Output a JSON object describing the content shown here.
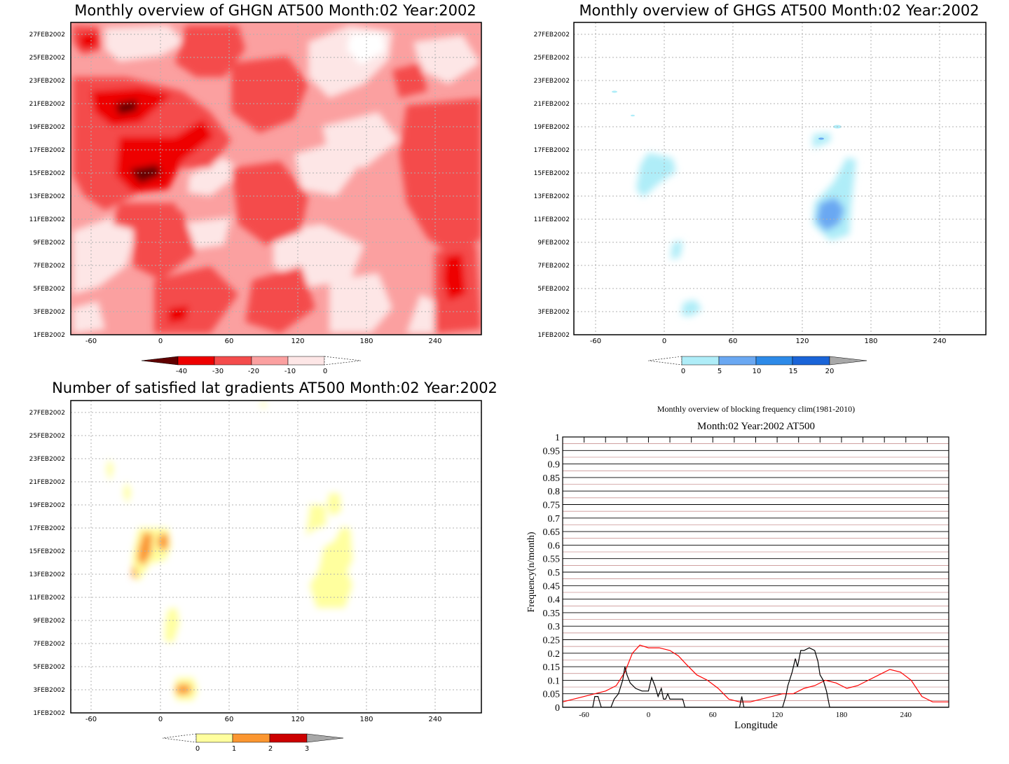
{
  "colors": {
    "red_le_m40": "#600000",
    "red_m40_m30": "#ee0000",
    "red_m30_m20": "#f44c4c",
    "red_m20_m10": "#fba0a0",
    "red_m10_0": "#fde6e6",
    "blue_0_5": "#afedf8",
    "blue_5_10": "#6aa8f2",
    "blue_10_15": "#2d8ae8",
    "blue_15_20": "#1a64d8",
    "yellow_0_1": "#ffff9e",
    "orange_1_2": "#fb9630",
    "red_2_3": "#cc0000",
    "grey_over": "#a8a8a8",
    "clim_line": "#ff0000",
    "obs_line": "#000000",
    "band_red_line": "#c08080"
  },
  "chart_data": [
    {
      "type": "heatmap",
      "title": "Monthly overview of GHGN AT500 Month:02 Year:2002",
      "x_ticks": [
        "-60",
        "0",
        "60",
        "120",
        "180",
        "240"
      ],
      "y_ticks": [
        "1FEB2002",
        "3FEB2002",
        "5FEB2002",
        "7FEB2002",
        "9FEB2002",
        "11FEB2002",
        "13FEB2002",
        "15FEB2002",
        "17FEB2002",
        "19FEB2002",
        "21FEB2002",
        "23FEB2002",
        "25FEB2002",
        "27FEB2002"
      ],
      "xlim": [
        -80,
        275
      ],
      "colorbar": [
        "-40",
        "-30",
        "-20",
        "-10",
        "0"
      ],
      "grid": true
    },
    {
      "type": "heatmap",
      "title": "Monthly overview of GHGS AT500 Month:02 Year:2002",
      "x_ticks": [
        "-60",
        "0",
        "60",
        "120",
        "180",
        "240"
      ],
      "y_ticks": [
        "1FEB2002",
        "3FEB2002",
        "5FEB2002",
        "7FEB2002",
        "9FEB2002",
        "11FEB2002",
        "13FEB2002",
        "15FEB2002",
        "17FEB2002",
        "19FEB2002",
        "21FEB2002",
        "23FEB2002",
        "25FEB2002",
        "27FEB2002"
      ],
      "xlim": [
        -80,
        275
      ],
      "colorbar": [
        "0",
        "5",
        "10",
        "15",
        "20"
      ],
      "grid": true
    },
    {
      "type": "heatmap",
      "title": "Number of satisfied lat gradients AT500 Month:02 Year:2002",
      "x_ticks": [
        "-60",
        "0",
        "60",
        "120",
        "180",
        "240"
      ],
      "y_ticks": [
        "1FEB2002",
        "3FEB2002",
        "5FEB2002",
        "7FEB2002",
        "9FEB2002",
        "11FEB2002",
        "13FEB2002",
        "15FEB2002",
        "17FEB2002",
        "19FEB2002",
        "21FEB2002",
        "23FEB2002",
        "25FEB2002",
        "27FEB2002"
      ],
      "xlim": [
        -80,
        275
      ],
      "colorbar": [
        "0",
        "1",
        "2",
        "3"
      ],
      "grid": true
    },
    {
      "type": "line",
      "title": "Monthly overview of blocking frequency clim(1981-2010)",
      "subtitle": "Month:02 Year:2002  AT500",
      "xlabel": "Longitude",
      "ylabel": "Frequency(n/month)",
      "xlim": [
        -80,
        280
      ],
      "ylim": [
        0,
        1
      ],
      "x_ticks": [
        "-60",
        "0",
        "60",
        "120",
        "180",
        "240"
      ],
      "y_ticks": [
        "0",
        "0.05",
        "0.1",
        "0.15",
        "0.2",
        "0.25",
        "0.3",
        "0.35",
        "0.4",
        "0.45",
        "0.5",
        "0.55",
        "0.6",
        "0.65",
        "0.7",
        "0.75",
        "0.8",
        "0.85",
        "0.9",
        "0.95",
        "1"
      ],
      "grid": true,
      "series": [
        {
          "color": "#ff0000",
          "x": [
            -80,
            -70,
            -60,
            -50,
            -40,
            -30,
            -22,
            -15,
            -8,
            0,
            10,
            20,
            28,
            35,
            45,
            55,
            65,
            75,
            85,
            95,
            105,
            115,
            125,
            135,
            145,
            155,
            165,
            175,
            185,
            195,
            205,
            215,
            225,
            235,
            245,
            255,
            265,
            275,
            280
          ],
          "y": [
            0.02,
            0.03,
            0.04,
            0.05,
            0.06,
            0.08,
            0.13,
            0.2,
            0.23,
            0.22,
            0.22,
            0.21,
            0.19,
            0.16,
            0.12,
            0.1,
            0.07,
            0.03,
            0.02,
            0.02,
            0.03,
            0.04,
            0.05,
            0.05,
            0.07,
            0.08,
            0.1,
            0.09,
            0.07,
            0.08,
            0.1,
            0.12,
            0.14,
            0.13,
            0.1,
            0.04,
            0.02,
            0.02,
            0.02
          ]
        },
        {
          "color": "#000000",
          "x": [
            -80,
            -52,
            -50,
            -47,
            -44,
            -35,
            -32,
            -28,
            -24,
            -22,
            -20,
            -17,
            -12,
            -6,
            0,
            3,
            6,
            9,
            12,
            14,
            16,
            18,
            20,
            25,
            32,
            34,
            85,
            87,
            89,
            125,
            128,
            130,
            134,
            137,
            139,
            142,
            145,
            150,
            155,
            158,
            160,
            163,
            166,
            169,
            175,
            280
          ],
          "y": [
            0,
            0,
            0.04,
            0.04,
            0,
            0,
            0.03,
            0.05,
            0.1,
            0.15,
            0.12,
            0.09,
            0.07,
            0.06,
            0.06,
            0.11,
            0.08,
            0.04,
            0.07,
            0.03,
            0.03,
            0.05,
            0.03,
            0.03,
            0.03,
            0,
            0,
            0.04,
            0,
            0,
            0.04,
            0.08,
            0.13,
            0.18,
            0.15,
            0.21,
            0.21,
            0.22,
            0.21,
            0.17,
            0.12,
            0.1,
            0.06,
            0,
            0,
            0
          ]
        }
      ]
    }
  ]
}
